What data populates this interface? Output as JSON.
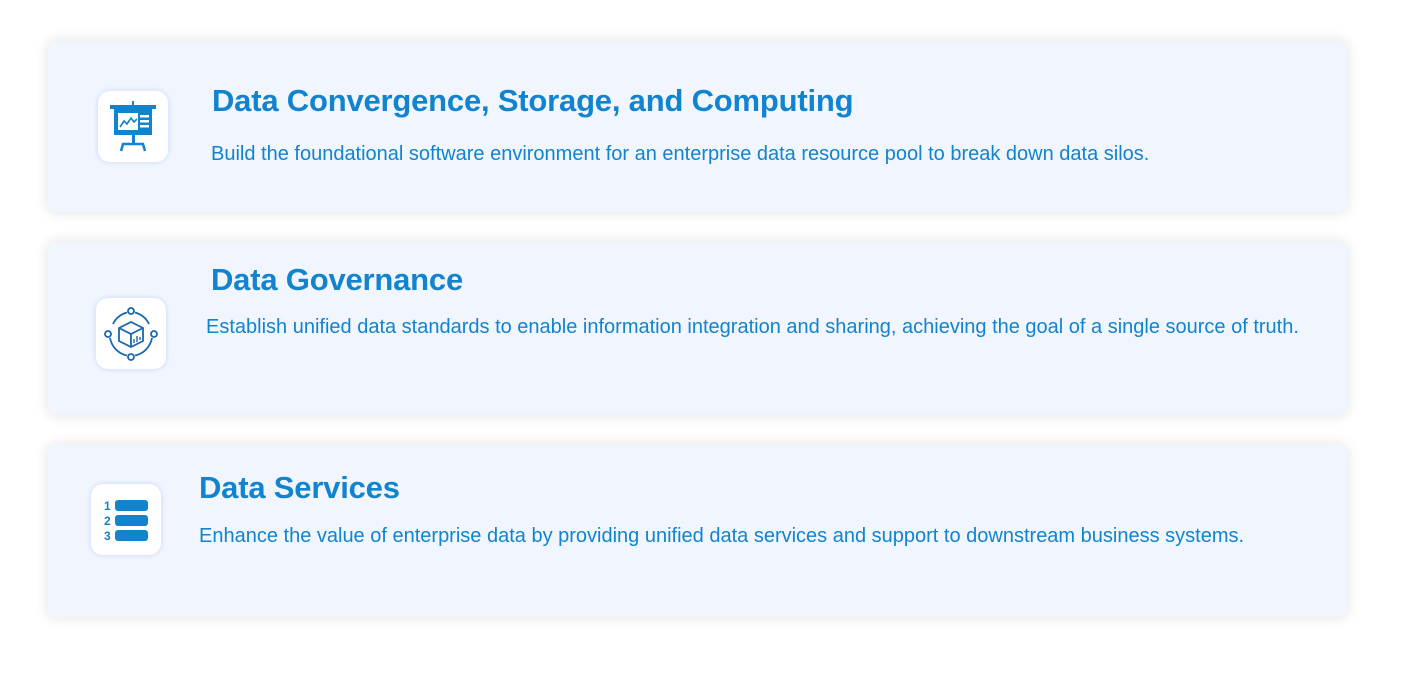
{
  "accent_color": "#1183cf",
  "cards": [
    {
      "icon": "presentation-chart-icon",
      "title": "Data Convergence, Storage, and Computing",
      "description": "Build the foundational software environment for an enterprise data resource pool to break down data silos."
    },
    {
      "icon": "data-cube-network-icon",
      "title": "Data Governance",
      "description": "Establish unified data standards to enable information integration and sharing, achieving the goal of a single source of truth."
    },
    {
      "icon": "numbered-list-icon",
      "title": "Data Services",
      "description": "Enhance the value of enterprise data by providing unified data services and support to downstream business systems."
    }
  ]
}
